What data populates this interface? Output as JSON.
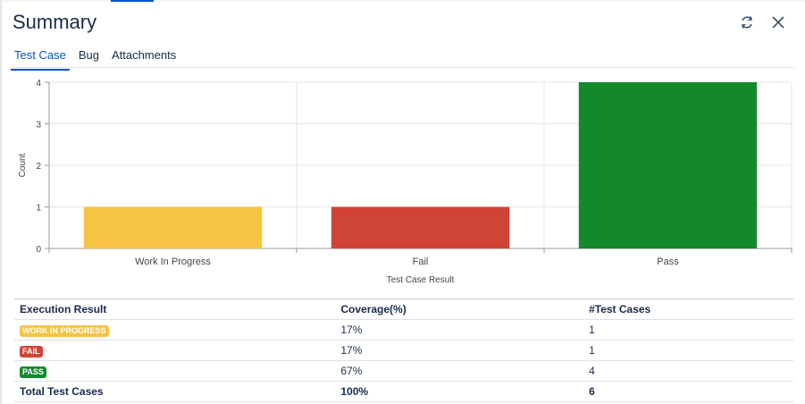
{
  "header": {
    "title": "Summary",
    "refresh_icon": "refresh-icon",
    "close_icon": "close-icon"
  },
  "tabs": [
    {
      "label": "Test Case",
      "active": true
    },
    {
      "label": "Bug",
      "active": false
    },
    {
      "label": "Attachments",
      "active": false
    }
  ],
  "chart_data": {
    "type": "bar",
    "categories": [
      "Work In Progress",
      "Fail",
      "Pass"
    ],
    "values": [
      1,
      1,
      4
    ],
    "colors": [
      "#f6c342",
      "#d04437",
      "#14892c"
    ],
    "xlabel": "Test Case Result",
    "ylabel": "Count",
    "ylim": [
      0,
      4
    ],
    "yticks": [
      0,
      1,
      2,
      3,
      4
    ],
    "grid": true
  },
  "table": {
    "headers": [
      "Execution Result",
      "Coverage(%)",
      "#Test Cases"
    ],
    "rows": [
      {
        "status": "WORK IN PROGRESS",
        "color": "#f6c342",
        "coverage": "17%",
        "count": "1"
      },
      {
        "status": "FAIL",
        "color": "#d04437",
        "coverage": "17%",
        "count": "1"
      },
      {
        "status": "PASS",
        "color": "#14892c",
        "coverage": "67%",
        "count": "4"
      }
    ],
    "total": {
      "label": "Total Test Cases",
      "coverage": "100%",
      "count": "6"
    }
  }
}
